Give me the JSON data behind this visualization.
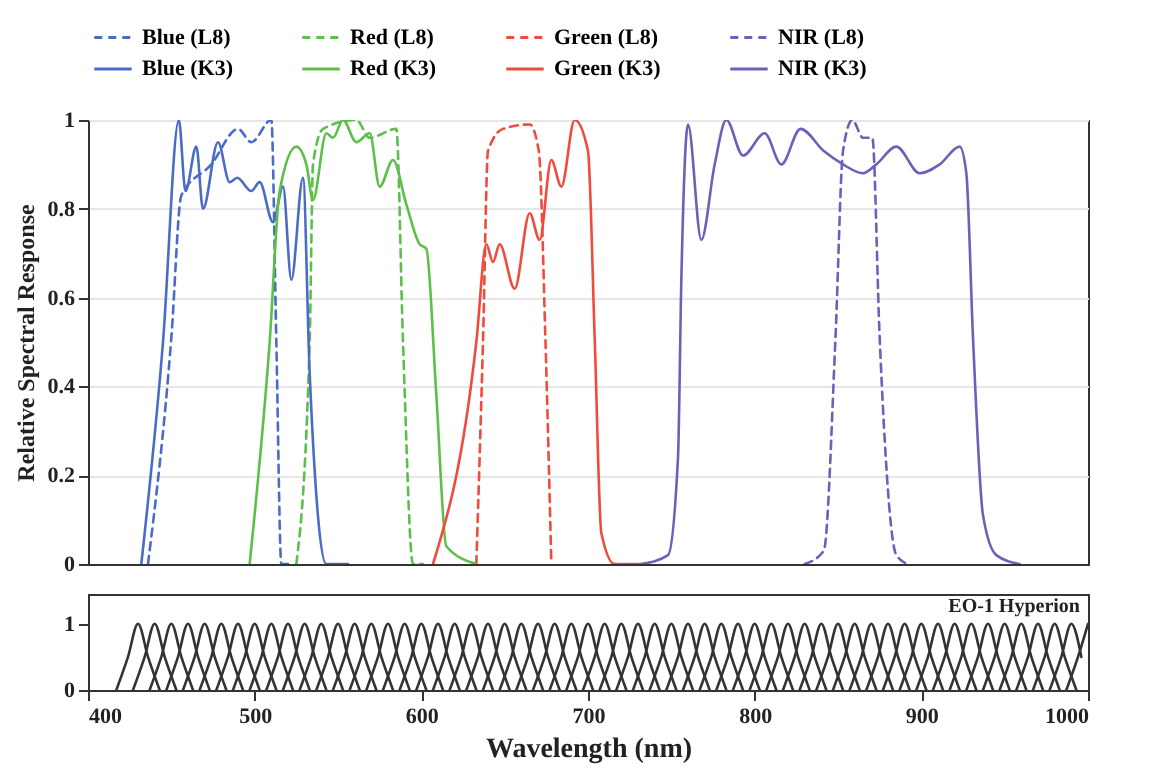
{
  "chart_data": [
    {
      "type": "line",
      "ylabel": "Relative Spectral Response",
      "xlim": [
        400,
        1000
      ],
      "ylim": [
        0,
        1
      ],
      "yticks": [
        0,
        0.2,
        0.4,
        0.6,
        0.8,
        1
      ],
      "tick_labels": "y",
      "grid": "y",
      "legend": "top",
      "series": [
        {
          "name": "Blue (L8)",
          "color": "#4a6cc8",
          "line_style": "dashed",
          "x": [
            436,
            450,
            456,
            474,
            490,
            498,
            510,
            513,
            516,
            522
          ],
          "values": [
            0,
            0.51,
            0.83,
            0.9,
            0.98,
            0.95,
            1.0,
            0.5,
            0,
            0
          ]
        },
        {
          "name": "Red (L8)",
          "color": "#5cbf4a",
          "line_style": "dashed",
          "x": [
            525,
            533,
            535,
            541,
            561,
            569,
            585,
            589,
            595,
            601
          ],
          "values": [
            0,
            0.5,
            0.9,
            0.98,
            1.0,
            0.96,
            0.98,
            0.5,
            0,
            0
          ]
        },
        {
          "name": "Green (L8)",
          "color": "#f04b3c",
          "line_style": "dashed",
          "x": [
            633,
            637,
            640,
            649,
            665,
            670.5,
            674.5,
            678
          ],
          "values": [
            0,
            0.5,
            0.93,
            0.98,
            0.99,
            0.93,
            0.5,
            0
          ]
        },
        {
          "name": "NIR (L8)",
          "color": "#6f5fb8",
          "line_style": "dashed",
          "x": [
            830,
            841.5,
            848.5,
            853,
            858.6,
            865,
            870.6,
            875,
            885,
            892
          ],
          "values": [
            0,
            0.03,
            0.51,
            0.93,
            1.0,
            0.96,
            0.96,
            0.51,
            0.02,
            0
          ]
        },
        {
          "name": "Blue (K3)",
          "color": "#4a6cc8",
          "line_style": "solid",
          "x": [
            432,
            445,
            454.5,
            458.5,
            465,
            469,
            478,
            485,
            489.5,
            498,
            503,
            511,
            517,
            522,
            529,
            533,
            543,
            556
          ],
          "values": [
            0,
            0.5,
            1.0,
            0.84,
            0.94,
            0.8,
            0.95,
            0.86,
            0.87,
            0.84,
            0.86,
            0.77,
            0.85,
            0.64,
            0.87,
            0.43,
            0,
            0
          ]
        },
        {
          "name": "Red (K3)",
          "color": "#5cbf4a",
          "line_style": "solid",
          "x": [
            497,
            509,
            515,
            525,
            531,
            535,
            543,
            547,
            553,
            561,
            569,
            575,
            583,
            591,
            599,
            603,
            609,
            615,
            633
          ],
          "values": [
            0,
            0.5,
            0.84,
            0.94,
            0.9,
            0.82,
            0.97,
            0.96,
            1.0,
            0.95,
            0.97,
            0.85,
            0.91,
            0.81,
            0.72,
            0.71,
            0.38,
            0.04,
            0
          ]
        },
        {
          "name": "Green (K3)",
          "color": "#f04b3c",
          "line_style": "solid",
          "x": [
            607,
            633,
            639,
            643,
            647,
            656,
            665,
            671,
            678,
            684,
            692,
            700,
            704,
            708,
            716,
            732
          ],
          "values": [
            0,
            0.5,
            0.72,
            0.68,
            0.72,
            0.62,
            0.79,
            0.73,
            0.91,
            0.85,
            1.0,
            0.93,
            0.51,
            0.07,
            0,
            0
          ]
        },
        {
          "name": "NIR (K3)",
          "color": "#6f5fb8",
          "line_style": "solid",
          "x": [
            732,
            748,
            754,
            756,
            760,
            768,
            776,
            783,
            793,
            806,
            816,
            827.5,
            841.5,
            853,
            865,
            873,
            885,
            899,
            911,
            923,
            927,
            931,
            937,
            945,
            959
          ],
          "values": [
            0,
            0.02,
            0.24,
            0.64,
            0.99,
            0.73,
            0.9,
            1.0,
            0.92,
            0.97,
            0.9,
            0.98,
            0.93,
            0.9,
            0.88,
            0.9,
            0.94,
            0.88,
            0.9,
            0.94,
            0.88,
            0.51,
            0.11,
            0.02,
            0
          ]
        }
      ]
    },
    {
      "type": "line",
      "xlabel": "Wavelength (nm)",
      "xlim": [
        400,
        1000
      ],
      "xticks": [
        400,
        500,
        600,
        700,
        800,
        900,
        1000
      ],
      "ylim": [
        0,
        1.45
      ],
      "yticks": [
        0,
        1
      ],
      "annotations": [
        "EO-1 Hyperion"
      ],
      "series": [
        {
          "color": "#333333",
          "x": [
            417,
            424,
            430,
            436,
            443
          ],
          "values": [
            0,
            0.5,
            1,
            0.5,
            0
          ]
        },
        {
          "color": "#333333",
          "x": [
            427,
            434,
            440,
            446,
            453
          ],
          "values": [
            0,
            0.5,
            1,
            0.5,
            0
          ]
        },
        {
          "color": "#333333",
          "x": [
            437,
            444,
            450,
            456,
            463
          ],
          "values": [
            0,
            0.5,
            1,
            0.5,
            0
          ]
        },
        {
          "color": "#333333",
          "x": [
            447,
            454,
            460,
            466,
            473
          ],
          "values": [
            0,
            0.5,
            1,
            0.5,
            0
          ]
        },
        {
          "color": "#333333",
          "x": [
            457,
            464,
            470,
            476,
            483
          ],
          "values": [
            0,
            0.5,
            1,
            0.5,
            0
          ]
        },
        {
          "color": "#333333",
          "x": [
            467,
            474,
            480,
            486,
            493
          ],
          "values": [
            0,
            0.5,
            1,
            0.5,
            0
          ]
        },
        {
          "color": "#333333",
          "x": [
            477,
            484,
            490,
            496,
            503
          ],
          "values": [
            0,
            0.5,
            1,
            0.5,
            0
          ]
        },
        {
          "color": "#333333",
          "x": [
            487,
            494,
            500,
            506,
            513
          ],
          "values": [
            0,
            0.5,
            1,
            0.5,
            0
          ]
        },
        {
          "color": "#333333",
          "x": [
            497,
            504,
            510,
            516,
            523
          ],
          "values": [
            0,
            0.5,
            1,
            0.5,
            0
          ]
        },
        {
          "color": "#333333",
          "x": [
            507,
            514,
            520,
            526,
            533
          ],
          "values": [
            0,
            0.5,
            1,
            0.5,
            0
          ]
        },
        {
          "color": "#333333",
          "x": [
            517,
            524,
            530,
            536,
            543
          ],
          "values": [
            0,
            0.5,
            1,
            0.5,
            0
          ]
        },
        {
          "color": "#333333",
          "x": [
            527,
            534,
            540,
            546,
            553
          ],
          "values": [
            0,
            0.5,
            1,
            0.5,
            0
          ]
        },
        {
          "color": "#333333",
          "x": [
            537,
            544,
            550,
            556,
            563
          ],
          "values": [
            0,
            0.5,
            1,
            0.5,
            0
          ]
        },
        {
          "color": "#333333",
          "x": [
            547,
            554,
            560,
            566,
            573
          ],
          "values": [
            0,
            0.5,
            1,
            0.5,
            0
          ]
        },
        {
          "color": "#333333",
          "x": [
            557,
            564,
            570,
            576,
            583
          ],
          "values": [
            0,
            0.5,
            1,
            0.5,
            0
          ]
        },
        {
          "color": "#333333",
          "x": [
            567,
            574,
            580,
            586,
            593
          ],
          "values": [
            0,
            0.5,
            1,
            0.5,
            0
          ]
        },
        {
          "color": "#333333",
          "x": [
            577,
            584,
            590,
            596,
            603
          ],
          "values": [
            0,
            0.5,
            1,
            0.5,
            0
          ]
        },
        {
          "color": "#333333",
          "x": [
            587,
            594,
            600,
            606,
            613
          ],
          "values": [
            0,
            0.5,
            1,
            0.5,
            0
          ]
        },
        {
          "color": "#333333",
          "x": [
            597,
            604,
            610,
            616,
            623
          ],
          "values": [
            0,
            0.5,
            1,
            0.5,
            0
          ]
        },
        {
          "color": "#333333",
          "x": [
            607,
            614,
            620,
            626,
            633
          ],
          "values": [
            0,
            0.5,
            1,
            0.5,
            0
          ]
        },
        {
          "color": "#333333",
          "x": [
            617,
            624,
            630,
            636,
            643
          ],
          "values": [
            0,
            0.5,
            1,
            0.5,
            0
          ]
        },
        {
          "color": "#333333",
          "x": [
            627,
            634,
            640,
            646,
            653
          ],
          "values": [
            0,
            0.5,
            1,
            0.5,
            0
          ]
        },
        {
          "color": "#333333",
          "x": [
            637,
            644,
            650,
            656,
            663
          ],
          "values": [
            0,
            0.5,
            1,
            0.5,
            0
          ]
        },
        {
          "color": "#333333",
          "x": [
            647,
            654,
            660,
            666,
            673
          ],
          "values": [
            0,
            0.5,
            1,
            0.5,
            0
          ]
        },
        {
          "color": "#333333",
          "x": [
            657,
            664,
            670,
            676,
            683
          ],
          "values": [
            0,
            0.5,
            1,
            0.5,
            0
          ]
        },
        {
          "color": "#333333",
          "x": [
            667,
            674,
            680,
            686,
            693
          ],
          "values": [
            0,
            0.5,
            1,
            0.5,
            0
          ]
        },
        {
          "color": "#333333",
          "x": [
            677,
            684,
            690,
            696,
            703
          ],
          "values": [
            0,
            0.5,
            1,
            0.5,
            0
          ]
        },
        {
          "color": "#333333",
          "x": [
            687,
            694,
            700,
            706,
            713
          ],
          "values": [
            0,
            0.5,
            1,
            0.5,
            0
          ]
        },
        {
          "color": "#333333",
          "x": [
            697,
            704,
            710,
            716,
            723
          ],
          "values": [
            0,
            0.5,
            1,
            0.5,
            0
          ]
        },
        {
          "color": "#333333",
          "x": [
            707,
            714,
            720,
            726,
            733
          ],
          "values": [
            0,
            0.5,
            1,
            0.5,
            0
          ]
        },
        {
          "color": "#333333",
          "x": [
            717,
            724,
            730,
            736,
            743
          ],
          "values": [
            0,
            0.5,
            1,
            0.5,
            0
          ]
        },
        {
          "color": "#333333",
          "x": [
            727,
            734,
            740,
            746,
            753
          ],
          "values": [
            0,
            0.5,
            1,
            0.5,
            0
          ]
        },
        {
          "color": "#333333",
          "x": [
            737,
            744,
            750,
            756,
            763
          ],
          "values": [
            0,
            0.5,
            1,
            0.5,
            0
          ]
        },
        {
          "color": "#333333",
          "x": [
            747,
            754,
            760,
            766,
            773
          ],
          "values": [
            0,
            0.5,
            1,
            0.5,
            0
          ]
        },
        {
          "color": "#333333",
          "x": [
            757,
            764,
            770,
            776,
            783
          ],
          "values": [
            0,
            0.5,
            1,
            0.5,
            0
          ]
        },
        {
          "color": "#333333",
          "x": [
            767,
            774,
            780,
            786,
            793
          ],
          "values": [
            0,
            0.5,
            1,
            0.5,
            0
          ]
        },
        {
          "color": "#333333",
          "x": [
            777,
            784,
            790,
            796,
            803
          ],
          "values": [
            0,
            0.5,
            1,
            0.5,
            0
          ]
        },
        {
          "color": "#333333",
          "x": [
            787,
            794,
            800,
            806,
            813
          ],
          "values": [
            0,
            0.5,
            1,
            0.5,
            0
          ]
        },
        {
          "color": "#333333",
          "x": [
            797,
            804,
            810,
            816,
            823
          ],
          "values": [
            0,
            0.5,
            1,
            0.5,
            0
          ]
        },
        {
          "color": "#333333",
          "x": [
            807,
            814,
            820,
            826,
            833
          ],
          "values": [
            0,
            0.5,
            1,
            0.5,
            0
          ]
        },
        {
          "color": "#333333",
          "x": [
            817,
            824,
            830,
            836,
            843
          ],
          "values": [
            0,
            0.5,
            1,
            0.5,
            0
          ]
        },
        {
          "color": "#333333",
          "x": [
            827,
            834,
            840,
            846,
            853
          ],
          "values": [
            0,
            0.5,
            1,
            0.5,
            0
          ]
        },
        {
          "color": "#333333",
          "x": [
            837,
            844,
            850,
            856,
            863
          ],
          "values": [
            0,
            0.5,
            1,
            0.5,
            0
          ]
        },
        {
          "color": "#333333",
          "x": [
            847,
            854,
            860,
            866,
            873
          ],
          "values": [
            0,
            0.5,
            1,
            0.5,
            0
          ]
        },
        {
          "color": "#333333",
          "x": [
            857,
            864,
            870,
            876,
            883
          ],
          "values": [
            0,
            0.5,
            1,
            0.5,
            0
          ]
        },
        {
          "color": "#333333",
          "x": [
            867,
            874,
            880,
            886,
            893
          ],
          "values": [
            0,
            0.5,
            1,
            0.5,
            0
          ]
        },
        {
          "color": "#333333",
          "x": [
            877,
            884,
            890,
            896,
            903
          ],
          "values": [
            0,
            0.5,
            1,
            0.5,
            0
          ]
        },
        {
          "color": "#333333",
          "x": [
            887,
            894,
            900,
            906,
            913
          ],
          "values": [
            0,
            0.5,
            1,
            0.5,
            0
          ]
        },
        {
          "color": "#333333",
          "x": [
            897,
            904,
            910,
            916,
            923
          ],
          "values": [
            0,
            0.5,
            1,
            0.5,
            0
          ]
        },
        {
          "color": "#333333",
          "x": [
            907,
            914,
            920,
            926,
            933
          ],
          "values": [
            0,
            0.5,
            1,
            0.5,
            0
          ]
        },
        {
          "color": "#333333",
          "x": [
            917,
            924,
            930,
            936,
            943
          ],
          "values": [
            0,
            0.5,
            1,
            0.5,
            0
          ]
        },
        {
          "color": "#333333",
          "x": [
            927,
            934,
            940,
            946,
            953
          ],
          "values": [
            0,
            0.5,
            1,
            0.5,
            0
          ]
        },
        {
          "color": "#333333",
          "x": [
            937,
            944,
            950,
            956,
            963
          ],
          "values": [
            0,
            0.5,
            1,
            0.5,
            0
          ]
        },
        {
          "color": "#333333",
          "x": [
            947,
            954,
            960,
            966,
            973
          ],
          "values": [
            0,
            0.5,
            1,
            0.5,
            0
          ]
        },
        {
          "color": "#333333",
          "x": [
            957,
            964,
            970,
            976,
            983
          ],
          "values": [
            0,
            0.5,
            1,
            0.5,
            0
          ]
        },
        {
          "color": "#333333",
          "x": [
            967,
            974,
            980,
            986,
            993
          ],
          "values": [
            0,
            0.5,
            1,
            0.5,
            0
          ]
        },
        {
          "color": "#333333",
          "x": [
            977,
            984,
            990,
            996
          ],
          "values": [
            0,
            0.5,
            1,
            0.5
          ]
        },
        {
          "color": "#333333",
          "x": [
            987,
            994,
            1000
          ],
          "values": [
            0,
            0.5,
            1
          ]
        }
      ]
    }
  ]
}
